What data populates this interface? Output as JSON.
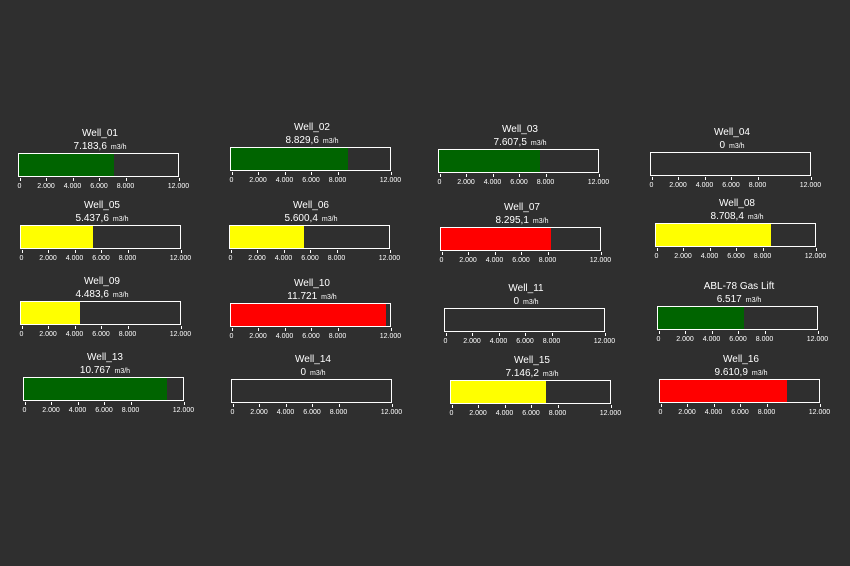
{
  "colors": {
    "background": "#2f2f2f",
    "green": "#006400",
    "yellow": "#ffff00",
    "red": "#ff0000",
    "frame": "#ffffff",
    "text": "#ffffff"
  },
  "scale": {
    "min": 0,
    "max": 12000,
    "tick_values": [
      0,
      2000,
      4000,
      6000,
      8000,
      12000
    ]
  },
  "wells": [
    {
      "name": "Well_01",
      "value_text": "7.183,6",
      "unit": "m3/h",
      "fraction": 0.5986,
      "color": "green",
      "tick_labels": [
        "0",
        "2.000",
        "4.000",
        "6.000",
        "8.000",
        "12.000"
      ]
    },
    {
      "name": "Well_02",
      "value_text": "8.829,6",
      "unit": "m3/h",
      "fraction": 0.7358,
      "color": "green",
      "tick_labels": [
        "0",
        "2.000",
        "4.000",
        "6.000",
        "8.000",
        "12.000"
      ]
    },
    {
      "name": "Well_03",
      "value_text": "7.607,5",
      "unit": "m3/h",
      "fraction": 0.634,
      "color": "green",
      "tick_labels": [
        "0",
        "2.000",
        "4.000",
        "6.000",
        "8.000",
        "12.000"
      ]
    },
    {
      "name": "Well_04",
      "value_text": "0",
      "unit": "m3/h",
      "fraction": 0,
      "color": "green",
      "tick_labels": [
        "0",
        "2.000",
        "4.000",
        "6.000",
        "8.000",
        "12.000"
      ]
    },
    {
      "name": "Well_05",
      "value_text": "5.437,6",
      "unit": "m3/h",
      "fraction": 0.4531,
      "color": "yellow",
      "tick_labels": [
        "0",
        "2.000",
        "4.000",
        "6.000",
        "8.000",
        "12.000"
      ]
    },
    {
      "name": "Well_06",
      "value_text": "5.600,4",
      "unit": "m3/h",
      "fraction": 0.4667,
      "color": "yellow",
      "tick_labels": [
        "0",
        "2.000",
        "4.000",
        "6.000",
        "8.000",
        "12.000"
      ]
    },
    {
      "name": "Well_07",
      "value_text": "8.295,1",
      "unit": "m3/h",
      "fraction": 0.6913,
      "color": "red",
      "tick_labels": [
        "0",
        "2.000",
        "4.000",
        "6.000",
        "8.000",
        "12.000"
      ]
    },
    {
      "name": "Well_08",
      "value_text": "8.708,4",
      "unit": "m3/h",
      "fraction": 0.7257,
      "color": "yellow",
      "tick_labels": [
        "0",
        "2.000",
        "4.000",
        "6.000",
        "8.000",
        "12.000"
      ]
    },
    {
      "name": "Well_09",
      "value_text": "4.483,6",
      "unit": "m3/h",
      "fraction": 0.3736,
      "color": "yellow",
      "tick_labels": [
        "0",
        "2.000",
        "4.000",
        "6.000",
        "8.000",
        "12.000"
      ]
    },
    {
      "name": "Well_10",
      "value_text": "11.721",
      "unit": "m3/h",
      "fraction": 0.9768,
      "color": "red",
      "tick_labels": [
        "0",
        "2.000",
        "4.000",
        "6.000",
        "8.000",
        "12.000"
      ]
    },
    {
      "name": "Well_11",
      "value_text": "0",
      "unit": "m3/h",
      "fraction": 0,
      "color": "green",
      "tick_labels": [
        "0",
        "2.000",
        "4.000",
        "6.000",
        "8.000",
        "12.000"
      ]
    },
    {
      "name": "ABL-78 Gas Lift",
      "value_text": "6.517",
      "unit": "m3/h",
      "fraction": 0.5431,
      "color": "green",
      "tick_labels": [
        "0",
        "2.000",
        "4.000",
        "6.000",
        "8.000",
        "12.000"
      ]
    },
    {
      "name": "Well_13",
      "value_text": "10.767",
      "unit": "m3/h",
      "fraction": 0.8973,
      "color": "green",
      "tick_labels": [
        "0",
        "2.000",
        "4.000",
        "6.000",
        "8.000",
        "12.000"
      ]
    },
    {
      "name": "Well_14",
      "value_text": "0",
      "unit": "m3/h",
      "fraction": 0,
      "color": "green",
      "tick_labels": [
        "0",
        "2.000",
        "4.000",
        "6.000",
        "8.000",
        "12.000"
      ]
    },
    {
      "name": "Well_15",
      "value_text": "7.146,2",
      "unit": "m3/h",
      "fraction": 0.5955,
      "color": "yellow",
      "tick_labels": [
        "0",
        "2.000",
        "4.000",
        "6.000",
        "8.000",
        "12.000"
      ]
    },
    {
      "name": "Well_16",
      "value_text": "9.610,9",
      "unit": "m3/h",
      "fraction": 0.8009,
      "color": "red",
      "tick_labels": [
        "0",
        "2.000",
        "4.000",
        "6.000",
        "8.000",
        "12.000"
      ]
    }
  ]
}
